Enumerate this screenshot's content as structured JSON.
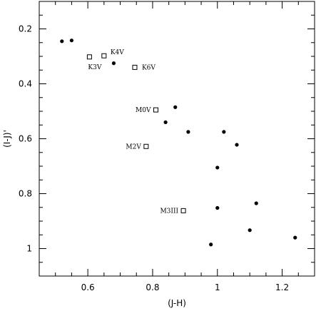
{
  "chart_data": {
    "type": "scatter",
    "xlabel": "(J-H)",
    "ylabel": "(I-J)'",
    "xlim": [
      0.45,
      1.3
    ],
    "ylim": [
      1.1,
      0.1
    ],
    "y_inverted": true,
    "xticks": [
      0.6,
      0.8,
      1.0,
      1.2
    ],
    "xtick_labels": [
      "0.6",
      "0.8",
      "1",
      "1.2"
    ],
    "yticks": [
      0.2,
      0.4,
      0.6,
      0.8,
      1.0
    ],
    "ytick_labels": [
      "0.2",
      "0.4",
      "0.6",
      "0.8",
      "1"
    ],
    "grid": false,
    "legend": "none",
    "series": [
      {
        "marker": "filled-circle",
        "points": [
          {
            "x": 0.52,
            "y": 0.245
          },
          {
            "x": 0.55,
            "y": 0.242
          },
          {
            "x": 0.68,
            "y": 0.325
          },
          {
            "x": 0.87,
            "y": 0.485
          },
          {
            "x": 0.84,
            "y": 0.54
          },
          {
            "x": 0.91,
            "y": 0.575
          },
          {
            "x": 1.02,
            "y": 0.575
          },
          {
            "x": 1.06,
            "y": 0.622
          },
          {
            "x": 1.0,
            "y": 0.705
          },
          {
            "x": 1.12,
            "y": 0.835
          },
          {
            "x": 1.0,
            "y": 0.852
          },
          {
            "x": 1.1,
            "y": 0.933
          },
          {
            "x": 1.24,
            "y": 0.96
          },
          {
            "x": 0.98,
            "y": 0.985
          }
        ]
      },
      {
        "marker": "open-square",
        "points": [
          {
            "x": 0.605,
            "y": 0.302,
            "label": "K3V",
            "label_pos": "below"
          },
          {
            "x": 0.65,
            "y": 0.298,
            "label": "K4V",
            "label_pos": "upper-right"
          },
          {
            "x": 0.745,
            "y": 0.34,
            "label": "K6V",
            "label_pos": "right"
          },
          {
            "x": 0.81,
            "y": 0.495,
            "label": "M0V",
            "label_pos": "left"
          },
          {
            "x": 0.78,
            "y": 0.628,
            "label": "M2V",
            "label_pos": "left"
          },
          {
            "x": 0.895,
            "y": 0.862,
            "label": "M3III",
            "label_pos": "left"
          }
        ]
      }
    ]
  }
}
